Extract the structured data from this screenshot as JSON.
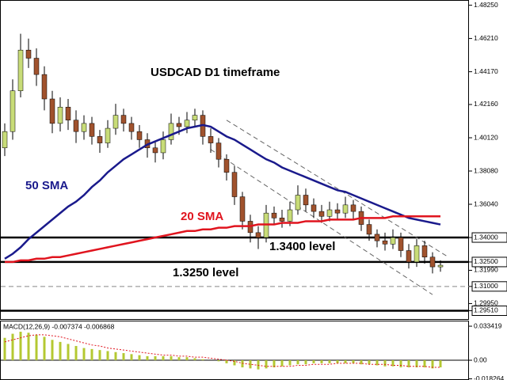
{
  "chart_data": {
    "type": "candlestick",
    "title": "USDCAD D1 timeframe",
    "up_color": "#c8dc78",
    "down_color": "#a0522d",
    "open": [
      1.395,
      1.405,
      1.43,
      1.455,
      1.45,
      1.44,
      1.425,
      1.41,
      1.42,
      1.412,
      1.405,
      1.41,
      1.402,
      1.398,
      1.407,
      1.415,
      1.41,
      1.405,
      1.4,
      1.395,
      1.392,
      1.4,
      1.41,
      1.408,
      1.412,
      1.415,
      1.402,
      1.398,
      1.388,
      1.38,
      1.365,
      1.35,
      1.343,
      1.34,
      1.355,
      1.352,
      1.35,
      1.357,
      1.366,
      1.36,
      1.356,
      1.353,
      1.357,
      1.355,
      1.36,
      1.356,
      1.348,
      1.342,
      1.338,
      1.336,
      1.34,
      1.332,
      1.325,
      1.335,
      1.328,
      1.322
    ],
    "high": [
      1.41,
      1.437,
      1.465,
      1.462,
      1.456,
      1.445,
      1.43,
      1.426,
      1.425,
      1.418,
      1.415,
      1.414,
      1.406,
      1.412,
      1.422,
      1.419,
      1.414,
      1.409,
      1.404,
      1.399,
      1.405,
      1.416,
      1.414,
      1.417,
      1.419,
      1.418,
      1.407,
      1.401,
      1.391,
      1.384,
      1.368,
      1.354,
      1.347,
      1.36,
      1.359,
      1.357,
      1.362,
      1.372,
      1.37,
      1.364,
      1.36,
      1.362,
      1.361,
      1.365,
      1.363,
      1.359,
      1.351,
      1.345,
      1.343,
      1.345,
      1.343,
      1.336,
      1.339,
      1.338,
      1.331,
      1.326
    ],
    "low": [
      1.39,
      1.4,
      1.426,
      1.444,
      1.433,
      1.418,
      1.404,
      1.405,
      1.406,
      1.398,
      1.4,
      1.397,
      1.392,
      1.395,
      1.403,
      1.405,
      1.4,
      1.395,
      1.389,
      1.386,
      1.388,
      1.397,
      1.403,
      1.404,
      1.408,
      1.397,
      1.392,
      1.383,
      1.375,
      1.36,
      1.345,
      1.337,
      1.333,
      1.337,
      1.348,
      1.346,
      1.347,
      1.354,
      1.356,
      1.352,
      1.349,
      1.35,
      1.351,
      1.352,
      1.351,
      1.344,
      1.338,
      1.334,
      1.332,
      1.333,
      1.328,
      1.321,
      1.322,
      1.324,
      1.318,
      1.319
    ],
    "close": [
      1.405,
      1.43,
      1.455,
      1.45,
      1.44,
      1.425,
      1.41,
      1.42,
      1.412,
      1.405,
      1.41,
      1.402,
      1.398,
      1.407,
      1.415,
      1.41,
      1.405,
      1.4,
      1.395,
      1.392,
      1.4,
      1.41,
      1.408,
      1.412,
      1.415,
      1.402,
      1.398,
      1.388,
      1.38,
      1.365,
      1.35,
      1.343,
      1.34,
      1.355,
      1.352,
      1.35,
      1.357,
      1.366,
      1.36,
      1.356,
      1.353,
      1.357,
      1.355,
      1.36,
      1.356,
      1.348,
      1.342,
      1.338,
      1.336,
      1.34,
      1.332,
      1.325,
      1.335,
      1.328,
      1.322,
      1.323
    ],
    "lines": [
      {
        "color": "#1a1a8c",
        "values": [
          1.327,
          1.33,
          1.334,
          1.339,
          1.343,
          1.347,
          1.351,
          1.355,
          1.359,
          1.362,
          1.366,
          1.371,
          1.375,
          1.38,
          1.384,
          1.388,
          1.391,
          1.394,
          1.397,
          1.399,
          1.401,
          1.403,
          1.405,
          1.407,
          1.408,
          1.409,
          1.408,
          1.405,
          1.402,
          1.4,
          1.397,
          1.394,
          1.391,
          1.388,
          1.386,
          1.383,
          1.381,
          1.379,
          1.377,
          1.375,
          1.373,
          1.371,
          1.369,
          1.368,
          1.366,
          1.364,
          1.362,
          1.36,
          1.358,
          1.356,
          1.354,
          1.352,
          1.351,
          1.35,
          1.349,
          1.348
        ]
      },
      {
        "color": "#e0141e",
        "values": [
          1.325,
          1.325,
          1.326,
          1.326,
          1.327,
          1.327,
          1.328,
          1.328,
          1.329,
          1.33,
          1.331,
          1.332,
          1.333,
          1.334,
          1.335,
          1.336,
          1.337,
          1.338,
          1.339,
          1.34,
          1.341,
          1.342,
          1.343,
          1.344,
          1.344,
          1.345,
          1.345,
          1.346,
          1.346,
          1.347,
          1.347,
          1.347,
          1.348,
          1.348,
          1.348,
          1.349,
          1.349,
          1.349,
          1.35,
          1.35,
          1.35,
          1.351,
          1.351,
          1.351,
          1.351,
          1.352,
          1.352,
          1.352,
          1.352,
          1.353,
          1.353,
          1.353,
          1.353,
          1.353,
          1.353,
          1.353
        ]
      }
    ],
    "trendlines": [
      {
        "x": [
          28,
          56
        ],
        "y": [
          1.412,
          1.328
        ]
      },
      {
        "x": [
          26,
          54
        ],
        "y": [
          1.394,
          1.305
        ]
      }
    ],
    "levels": [
      {
        "value": 1.34,
        "style": "solid"
      },
      {
        "value": 1.325,
        "style": "solid"
      },
      {
        "value": 1.31,
        "style": "dashed"
      },
      {
        "value": 1.2951,
        "style": "solid"
      }
    ],
    "annotations": [
      {
        "text": "50 SMA",
        "color": "#1a1a8c"
      },
      {
        "text": "20 SMA",
        "color": "#e0141e"
      },
      {
        "text": "1.3400 level",
        "color": "#000000"
      },
      {
        "text": "1.3250 level",
        "color": "#000000"
      }
    ],
    "ylim": [
      1.29,
      1.4857
    ],
    "yticks": [
      {
        "value": 1.4825,
        "label": "1.48250"
      },
      {
        "value": 1.4621,
        "label": "1.46210"
      },
      {
        "value": 1.4417,
        "label": "1.44170"
      },
      {
        "value": 1.4216,
        "label": "1.42160"
      },
      {
        "value": 1.4012,
        "label": "1.40120"
      },
      {
        "value": 1.3808,
        "label": "1.38080"
      },
      {
        "value": 1.3604,
        "label": "1.36040"
      },
      {
        "value": 1.34,
        "label": "1.34000",
        "boxed": true
      },
      {
        "value": 1.325,
        "label": "1.32500",
        "boxed": true
      },
      {
        "value": 1.3199,
        "label": "1.31990"
      },
      {
        "value": 1.31,
        "label": "1.31000",
        "boxed": true
      },
      {
        "value": 1.2995,
        "label": "1.29950"
      },
      {
        "value": 1.2951,
        "label": "1.29510",
        "boxed": true
      }
    ],
    "macd": {
      "label": "MACD(12,26,9) -0.007374 -0.006868",
      "hist_color": "#b4c832",
      "signal_color": "#e0141e",
      "histogram": [
        0.022,
        0.026,
        0.028,
        0.027,
        0.025,
        0.023,
        0.02,
        0.018,
        0.016,
        0.014,
        0.012,
        0.011,
        0.01,
        0.009,
        0.008,
        0.007,
        0.006,
        0.005,
        0.004,
        0.004,
        0.004,
        0.004,
        0.003,
        0.003,
        0.002,
        0.001,
        0.0,
        -0.001,
        -0.003,
        -0.005,
        -0.007,
        -0.008,
        -0.009,
        -0.008,
        -0.007,
        -0.006,
        -0.005,
        -0.004,
        -0.004,
        -0.003,
        -0.003,
        -0.003,
        -0.003,
        -0.003,
        -0.003,
        -0.004,
        -0.004,
        -0.005,
        -0.006,
        -0.006,
        -0.007,
        -0.007,
        -0.007,
        -0.007,
        -0.008,
        -0.007
      ],
      "signal": [
        0.018,
        0.02,
        0.022,
        0.024,
        0.025,
        0.025,
        0.024,
        0.023,
        0.021,
        0.019,
        0.017,
        0.015,
        0.014,
        0.012,
        0.011,
        0.01,
        0.009,
        0.008,
        0.007,
        0.006,
        0.005,
        0.005,
        0.004,
        0.004,
        0.003,
        0.003,
        0.002,
        0.001,
        0.0,
        -0.001,
        -0.003,
        -0.004,
        -0.005,
        -0.006,
        -0.006,
        -0.006,
        -0.006,
        -0.005,
        -0.005,
        -0.004,
        -0.004,
        -0.004,
        -0.003,
        -0.003,
        -0.003,
        -0.003,
        -0.004,
        -0.004,
        -0.004,
        -0.005,
        -0.005,
        -0.006,
        -0.006,
        -0.006,
        -0.007,
        -0.007
      ],
      "ylim": [
        -0.0194,
        0.0389
      ],
      "yticks": [
        {
          "value": 0.033419,
          "label": "0.033419"
        },
        {
          "value": 0,
          "label": "0.00"
        },
        {
          "value": -0.018264,
          "label": "-0.018264"
        }
      ]
    }
  }
}
